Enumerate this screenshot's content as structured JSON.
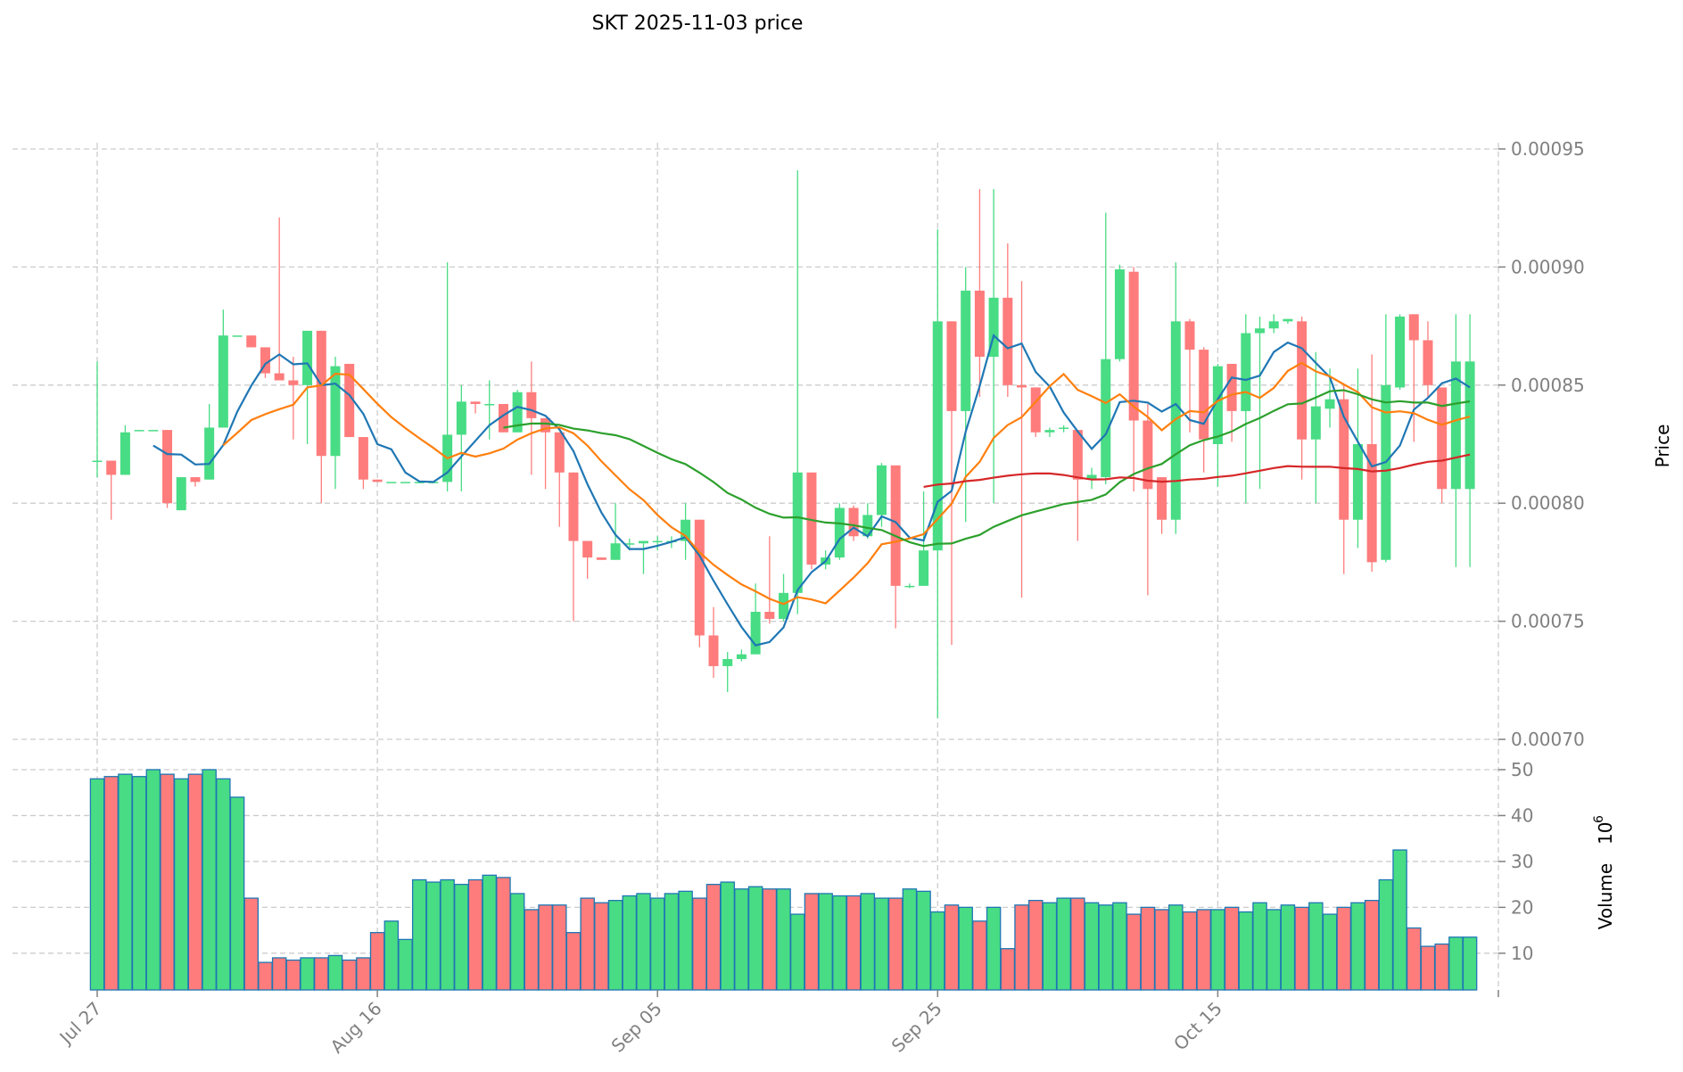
{
  "chart_data": [
    {
      "type": "candlestick",
      "title": "SKT  2025-11-03  price",
      "ylabel": "Price",
      "ylim": [
        0.0007,
        0.00095
      ],
      "yticks": [
        "0.00070",
        "0.00075",
        "0.00080",
        "0.00085",
        "0.00090",
        "0.00095"
      ],
      "ytick_values": [
        0.0007,
        0.00075,
        0.0008,
        0.00085,
        0.0009,
        0.00095
      ],
      "grid": true,
      "x_ticks": [
        {
          "label": "Jul 27",
          "index": 0
        },
        {
          "label": "Aug 16",
          "index": 20
        },
        {
          "label": "Sep 05",
          "index": 40
        },
        {
          "label": "Sep 25",
          "index": 60
        },
        {
          "label": "Oct 15",
          "index": 80
        }
      ],
      "xlim": [
        -1,
        100
      ],
      "moving_averages": [
        {
          "period": 5,
          "color": "#1f77b4"
        },
        {
          "period": 10,
          "color": "#ff7f0e"
        },
        {
          "period": 30,
          "color": "#2ca02c"
        },
        {
          "period": 60,
          "color": "#d62728"
        }
      ],
      "colors": {
        "up": "#48dc84",
        "down": "#fe7c7c",
        "volume_edge": "#1f77b4"
      },
      "price_unit_scale": 1e-06,
      "ohlcv_fields": [
        "open",
        "close",
        "high",
        "low",
        "volume"
      ],
      "ohlcv": [
        [
          818,
          818,
          860,
          811,
          48
        ],
        [
          818,
          812,
          818,
          793,
          48.5
        ],
        [
          812,
          830,
          833,
          812,
          49
        ],
        [
          831,
          831,
          831,
          831,
          48.5
        ],
        [
          831,
          831,
          831,
          831,
          50
        ],
        [
          831,
          800,
          831,
          798,
          49
        ],
        [
          797,
          811,
          811,
          797,
          48
        ],
        [
          811,
          809,
          811,
          807,
          49
        ],
        [
          810,
          832,
          842,
          810,
          50
        ],
        [
          832,
          871,
          882,
          832,
          48
        ],
        [
          871,
          871,
          871,
          871,
          44
        ],
        [
          871,
          866,
          871,
          866,
          22
        ],
        [
          866,
          855,
          866,
          853,
          8
        ],
        [
          855,
          852,
          921,
          852,
          9
        ],
        [
          852,
          850,
          862,
          827,
          8.5
        ],
        [
          850,
          873,
          873,
          825,
          9
        ],
        [
          873,
          820,
          873,
          800,
          9
        ],
        [
          820,
          858,
          862,
          806,
          9.5
        ],
        [
          859,
          828,
          859,
          828,
          8.5
        ],
        [
          828,
          810,
          828,
          806,
          9
        ],
        [
          810,
          809,
          810,
          809,
          14.5
        ],
        [
          809,
          809,
          809,
          809,
          17
        ],
        [
          809,
          809,
          809,
          809,
          13
        ],
        [
          809,
          809,
          809,
          809,
          26
        ],
        [
          809,
          809,
          809,
          809,
          25.5
        ],
        [
          809,
          829,
          902,
          805,
          26
        ],
        [
          829,
          843,
          850,
          805,
          25
        ],
        [
          843,
          842,
          843,
          838,
          26
        ],
        [
          842,
          842,
          852,
          827,
          27
        ],
        [
          842,
          830,
          842,
          830,
          26.5
        ],
        [
          830,
          847,
          848,
          830,
          23
        ],
        [
          847,
          836,
          860,
          812,
          19.5
        ],
        [
          836,
          830,
          836,
          806,
          20.5
        ],
        [
          830,
          813,
          830,
          790,
          20.5
        ],
        [
          813,
          784,
          813,
          750,
          14.5
        ],
        [
          784,
          777,
          784,
          768,
          22
        ],
        [
          777,
          776,
          777,
          776,
          21
        ],
        [
          776,
          783,
          800,
          776,
          21.5
        ],
        [
          783,
          783,
          785,
          780,
          22.5
        ],
        [
          783,
          784,
          784,
          770,
          23
        ],
        [
          784,
          784,
          786,
          780,
          22
        ],
        [
          784,
          784,
          786,
          781,
          23
        ],
        [
          784,
          793,
          800,
          776,
          23.5
        ],
        [
          793,
          744,
          793,
          739,
          22
        ],
        [
          744,
          731,
          756,
          726,
          25
        ],
        [
          731,
          734,
          737,
          720,
          25.5
        ],
        [
          734,
          736,
          738,
          733,
          24
        ],
        [
          736,
          754,
          766,
          736,
          24.5
        ],
        [
          754,
          751,
          786,
          749,
          24
        ],
        [
          751,
          762,
          770,
          750,
          24
        ],
        [
          762,
          813,
          941,
          753,
          18.5
        ],
        [
          813,
          774,
          813,
          772,
          23
        ],
        [
          774,
          777,
          780,
          772,
          23
        ],
        [
          777,
          798,
          800,
          776,
          22.5
        ],
        [
          798,
          786,
          799,
          784,
          22.5
        ],
        [
          786,
          795,
          800,
          785,
          23
        ],
        [
          795,
          816,
          817,
          790,
          22
        ],
        [
          816,
          765,
          816,
          747,
          22
        ],
        [
          765,
          765,
          766,
          764,
          24
        ],
        [
          765,
          780,
          805,
          765,
          23.5
        ],
        [
          780,
          877,
          916,
          709,
          19
        ],
        [
          877,
          839,
          877,
          740,
          20.5
        ],
        [
          839,
          890,
          900,
          792,
          20
        ],
        [
          890,
          862,
          933,
          845,
          17
        ],
        [
          862,
          887,
          933,
          800,
          20
        ],
        [
          887,
          850,
          910,
          845,
          11
        ],
        [
          850,
          849,
          894,
          760,
          20.5
        ],
        [
          849,
          830,
          849,
          828,
          21.5
        ],
        [
          830,
          831,
          832,
          828,
          21
        ],
        [
          832,
          832,
          833,
          830,
          22
        ],
        [
          831,
          810,
          831,
          784,
          22
        ],
        [
          810,
          812,
          815,
          806,
          21
        ],
        [
          811,
          861,
          923,
          808,
          20.5
        ],
        [
          861,
          899,
          901,
          860,
          21
        ],
        [
          898,
          835,
          900,
          805,
          18.5
        ],
        [
          835,
          806,
          842,
          761,
          20
        ],
        [
          811,
          793,
          811,
          787,
          19.5
        ],
        [
          793,
          877,
          902,
          787,
          20.5
        ],
        [
          877,
          865,
          878,
          830,
          19
        ],
        [
          865,
          827,
          866,
          813,
          19.5
        ],
        [
          825,
          858,
          859,
          807,
          19.5
        ],
        [
          859,
          839,
          859,
          826,
          20
        ],
        [
          839,
          872,
          880,
          800,
          19
        ],
        [
          872,
          874,
          879,
          806,
          21
        ],
        [
          874,
          877,
          880,
          872,
          19.5
        ],
        [
          877,
          878,
          878,
          876,
          20.5
        ],
        [
          877,
          827,
          879,
          810,
          20
        ],
        [
          827,
          841,
          864,
          800,
          21
        ],
        [
          840,
          844,
          857,
          832,
          18.5
        ],
        [
          844,
          793,
          850,
          770,
          20
        ],
        [
          793,
          825,
          857,
          781,
          21
        ],
        [
          825,
          775,
          863,
          771,
          21.5
        ],
        [
          776,
          850,
          880,
          775,
          26
        ],
        [
          849,
          879,
          880,
          848,
          32.5
        ],
        [
          880,
          869,
          880,
          826,
          15.5
        ],
        [
          869,
          850,
          877,
          845,
          11.5
        ],
        [
          849,
          806,
          849,
          800,
          12
        ],
        [
          806,
          860,
          880,
          773,
          13.5
        ],
        [
          806,
          860,
          880,
          773,
          13.5
        ]
      ]
    },
    {
      "type": "bar",
      "ylabel": "Volume",
      "ylabel_exp": "6",
      "ylabel_base": "10",
      "ylim": [
        2,
        50
      ],
      "yticks": [
        "10",
        "20",
        "30",
        "40",
        "50"
      ],
      "ytick_values": [
        10,
        20,
        30,
        40,
        50
      ]
    }
  ]
}
